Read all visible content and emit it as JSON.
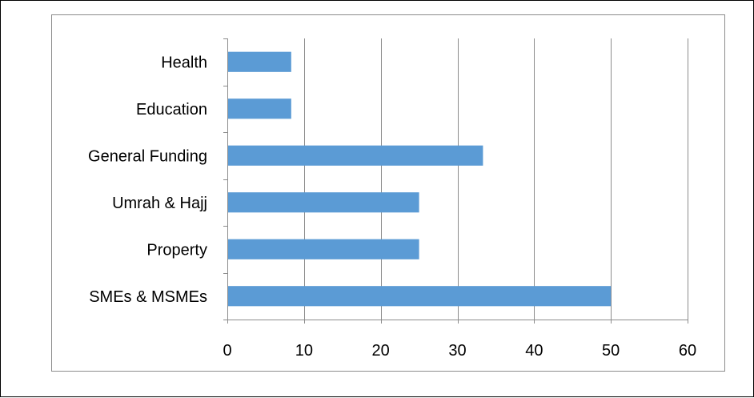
{
  "chart_data": {
    "type": "bar",
    "orientation": "horizontal",
    "categories": [
      "Health",
      "Education",
      "General Funding",
      "Umrah & Hajj",
      "Property",
      "SMEs & MSMEs"
    ],
    "values": [
      8.33,
      8.33,
      33.33,
      25,
      25,
      50
    ],
    "xlim": [
      0,
      60
    ],
    "x_ticks": [
      "0",
      "10",
      "20",
      "30",
      "40",
      "50",
      "60"
    ],
    "grid": "vertical",
    "bar_color": "#5b9bd5",
    "title": "",
    "xlabel": "",
    "ylabel": ""
  }
}
